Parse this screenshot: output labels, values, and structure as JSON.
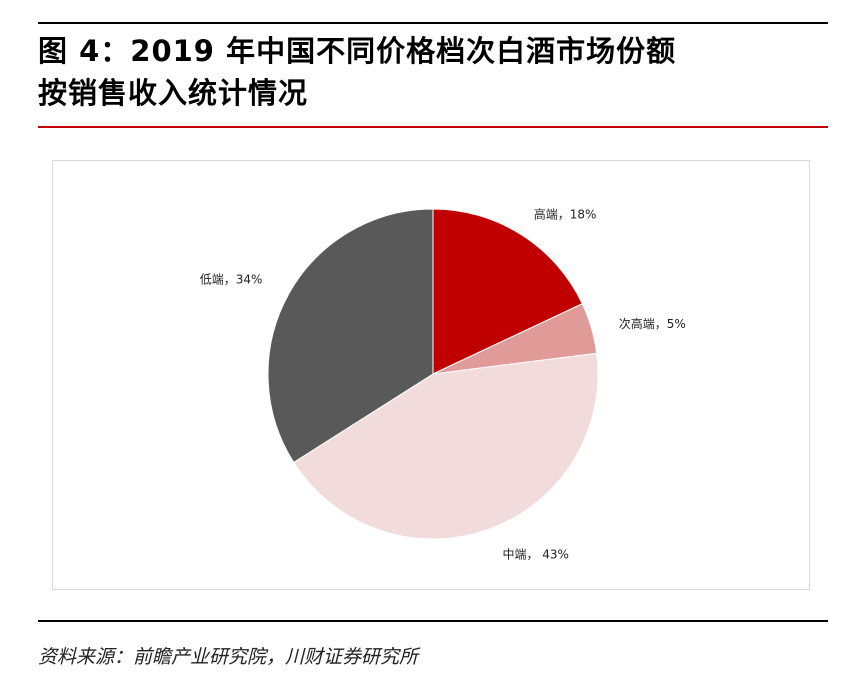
{
  "title": {
    "line1": "图 4：2019 年中国不同价格档次白酒市场份额",
    "line2": "按销售收入统计情况"
  },
  "source": "资料来源：前瞻产业研究院，川财证券研究所",
  "colors": {
    "accent_rule": "#c00000",
    "slice_high": "#c00000",
    "slice_sub_high": "#e09a98",
    "slice_mid": "#f2dcdb",
    "slice_low": "#595959"
  },
  "chart_data": {
    "type": "pie",
    "start_angle_deg": 0,
    "direction": "clockwise",
    "slices": [
      {
        "name": "高端",
        "value": 18,
        "label": "高端，18%",
        "color": "#c00000"
      },
      {
        "name": "次高端",
        "value": 5,
        "label": "次高端，5%",
        "color": "#e09a98"
      },
      {
        "name": "中端",
        "value": 43,
        "label": "中端， 43%",
        "color": "#f2dcdb"
      },
      {
        "name": "低端",
        "value": 34,
        "label": "低端，34%",
        "color": "#595959"
      }
    ]
  }
}
